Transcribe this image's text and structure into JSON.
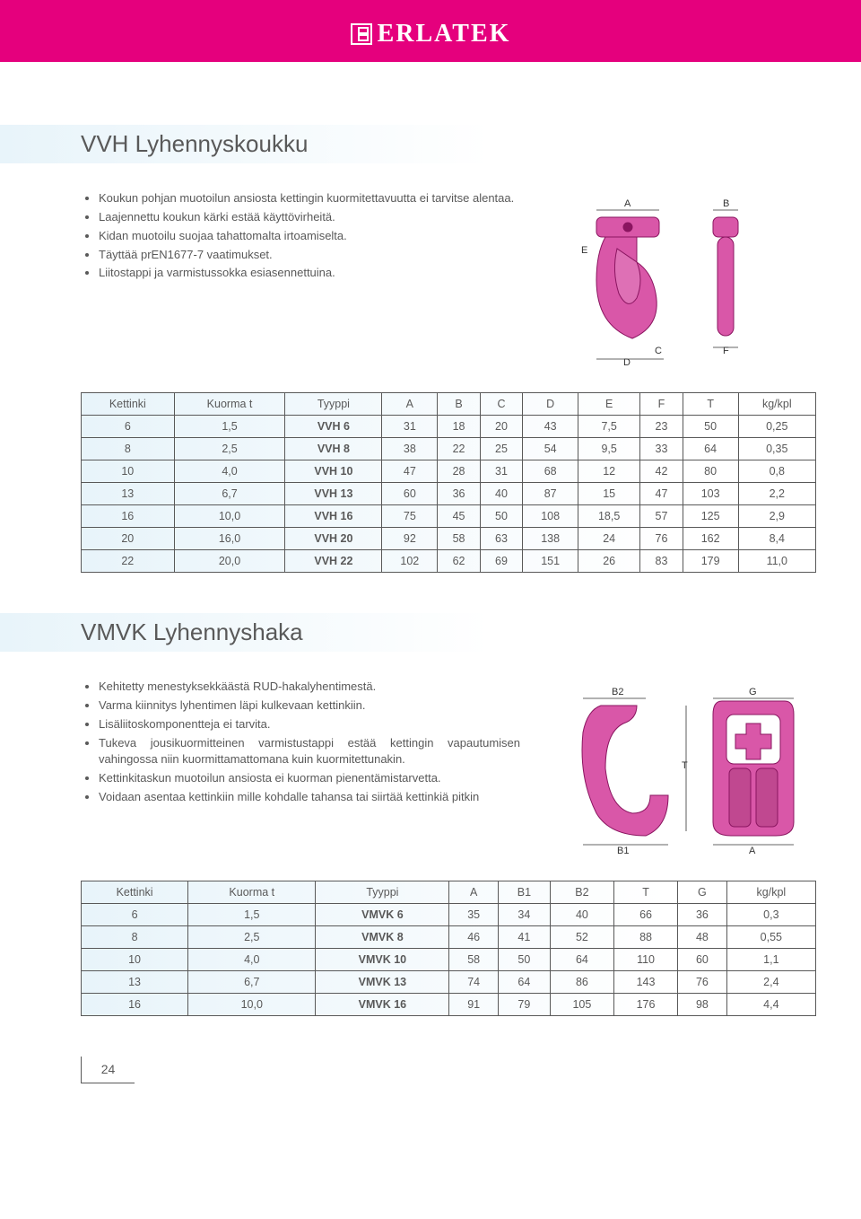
{
  "brand": "ERLATEK",
  "page_number": "24",
  "section1": {
    "title": "VVH Lyhennyskoukku",
    "bullets": [
      "Koukun pohjan muotoilun ansiosta kettingin kuormitettavuutta ei tarvitse alentaa.",
      "Laajennettu koukun kärki estää käyttövirheitä.",
      "Kidan muotoilu suojaa tahattomalta irtoamiselta.",
      "Täyttää prEN1677-7 vaatimukset.",
      "Liitostappi ja varmistussokka esiasennettuina."
    ],
    "diagram_labels": {
      "A": "A",
      "B": "B",
      "C": "C",
      "D": "D",
      "E": "E",
      "F": "F"
    },
    "table": {
      "columns": [
        "Kettinki",
        "Kuorma t",
        "Tyyppi",
        "A",
        "B",
        "C",
        "D",
        "E",
        "F",
        "T",
        "kg/kpl"
      ],
      "bold_col_index": 2,
      "rows": [
        [
          "6",
          "1,5",
          "VVH 6",
          "31",
          "18",
          "20",
          "43",
          "7,5",
          "23",
          "50",
          "0,25"
        ],
        [
          "8",
          "2,5",
          "VVH 8",
          "38",
          "22",
          "25",
          "54",
          "9,5",
          "33",
          "64",
          "0,35"
        ],
        [
          "10",
          "4,0",
          "VVH 10",
          "47",
          "28",
          "31",
          "68",
          "12",
          "42",
          "80",
          "0,8"
        ],
        [
          "13",
          "6,7",
          "VVH 13",
          "60",
          "36",
          "40",
          "87",
          "15",
          "47",
          "103",
          "2,2"
        ],
        [
          "16",
          "10,0",
          "VVH 16",
          "75",
          "45",
          "50",
          "108",
          "18,5",
          "57",
          "125",
          "2,9"
        ],
        [
          "20",
          "16,0",
          "VVH 20",
          "92",
          "58",
          "63",
          "138",
          "24",
          "76",
          "162",
          "8,4"
        ],
        [
          "22",
          "20,0",
          "VVH 22",
          "102",
          "62",
          "69",
          "151",
          "26",
          "83",
          "179",
          "11,0"
        ]
      ]
    }
  },
  "section2": {
    "title": "VMVK Lyhennyshaka",
    "bullets": [
      "Kehitetty menestyksekkäästä RUD-hakalyhentimestä.",
      "Varma kiinnitys lyhentimen läpi kulkevaan kettinkiin.",
      "Lisäliitoskomponentteja ei tarvita.",
      "Tukeva jousikuormitteinen varmistustappi estää kettingin vapautumisen vahingossa niin kuormittamattomana kuin kuormitettunakin.",
      "Kettinkitaskun muotoilun ansiosta ei kuorman pienentämistarvetta.",
      "Voidaan asentaa kettinkiin mille kohdalle tahansa tai siirtää kettinkiä pitkin"
    ],
    "diagram_labels": {
      "B1": "B1",
      "B2": "B2",
      "G": "G",
      "T": "T",
      "A": "A"
    },
    "table": {
      "columns": [
        "Kettinki",
        "Kuorma t",
        "Tyyppi",
        "A",
        "B1",
        "B2",
        "T",
        "G",
        "kg/kpl"
      ],
      "bold_col_index": 2,
      "rows": [
        [
          "6",
          "1,5",
          "VMVK 6",
          "35",
          "34",
          "40",
          "66",
          "36",
          "0,3"
        ],
        [
          "8",
          "2,5",
          "VMVK 8",
          "46",
          "41",
          "52",
          "88",
          "48",
          "0,55"
        ],
        [
          "10",
          "4,0",
          "VMVK 10",
          "58",
          "50",
          "64",
          "110",
          "60",
          "1,1"
        ],
        [
          "13",
          "6,7",
          "VMVK 13",
          "74",
          "64",
          "86",
          "143",
          "76",
          "2,4"
        ],
        [
          "16",
          "10,0",
          "VMVK 16",
          "91",
          "79",
          "105",
          "176",
          "98",
          "4,4"
        ]
      ]
    }
  },
  "colors": {
    "accent": "#e5007d",
    "product_fill": "#d957a8",
    "product_stroke": "#8a1560",
    "text": "#595959",
    "table_bg_start": "#e8f4fa"
  }
}
